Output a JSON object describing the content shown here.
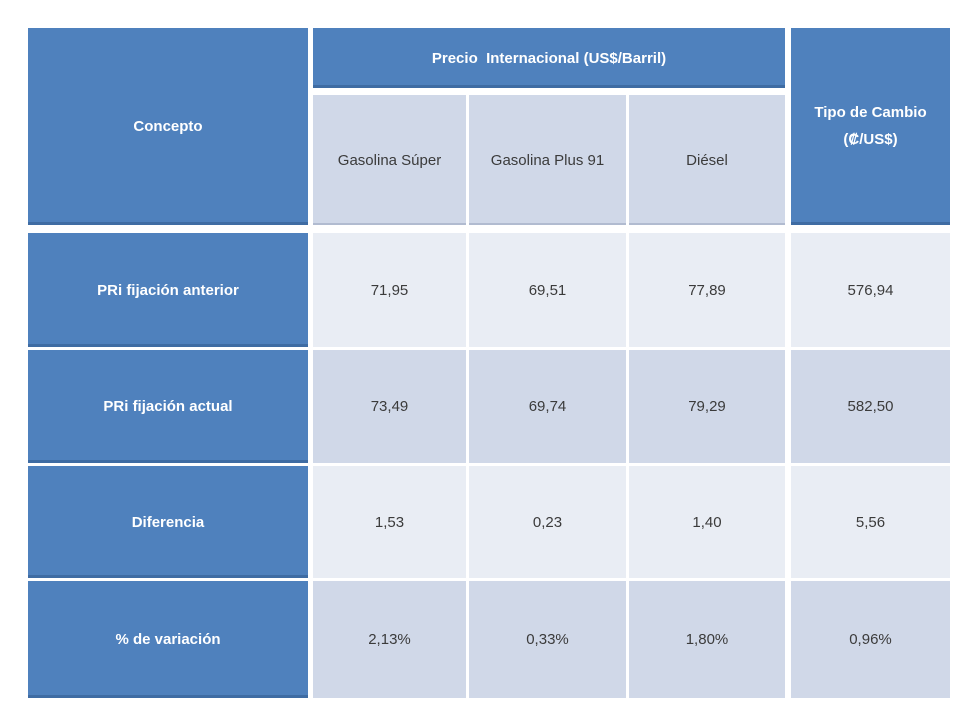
{
  "table": {
    "concepto_header": "Concepto",
    "group_header": "Precio  Internacional (US$/Barril)",
    "exchange_header": {
      "line1": "Tipo de Cambio",
      "line2": "(₡/US$)"
    },
    "column_headers": [
      "Gasolina Súper",
      "Gasolina Plus 91",
      "Diésel"
    ],
    "rows": [
      {
        "label": "PRi fijación anterior",
        "values": [
          "71,95",
          "69,51",
          "77,89",
          "576,94"
        ]
      },
      {
        "label": "PRi fijación actual",
        "values": [
          "73,49",
          "69,74",
          "79,29",
          "582,50"
        ]
      },
      {
        "label": "Diferencia",
        "values": [
          "1,53",
          "0,23",
          "1,40",
          "5,56"
        ]
      },
      {
        "label": "% de variación",
        "values": [
          "2,13%",
          "0,33%",
          "1,80%",
          "0,96%"
        ]
      }
    ],
    "colors": {
      "header_blue": "#4F81BD",
      "band_light": "#E9EDF4",
      "band_dark": "#D0D8E8",
      "header_text": "#FFFFFF",
      "cell_text": "#3B3B3B",
      "border": "#FFFFFF",
      "page_background": "#FFFFFF"
    }
  }
}
